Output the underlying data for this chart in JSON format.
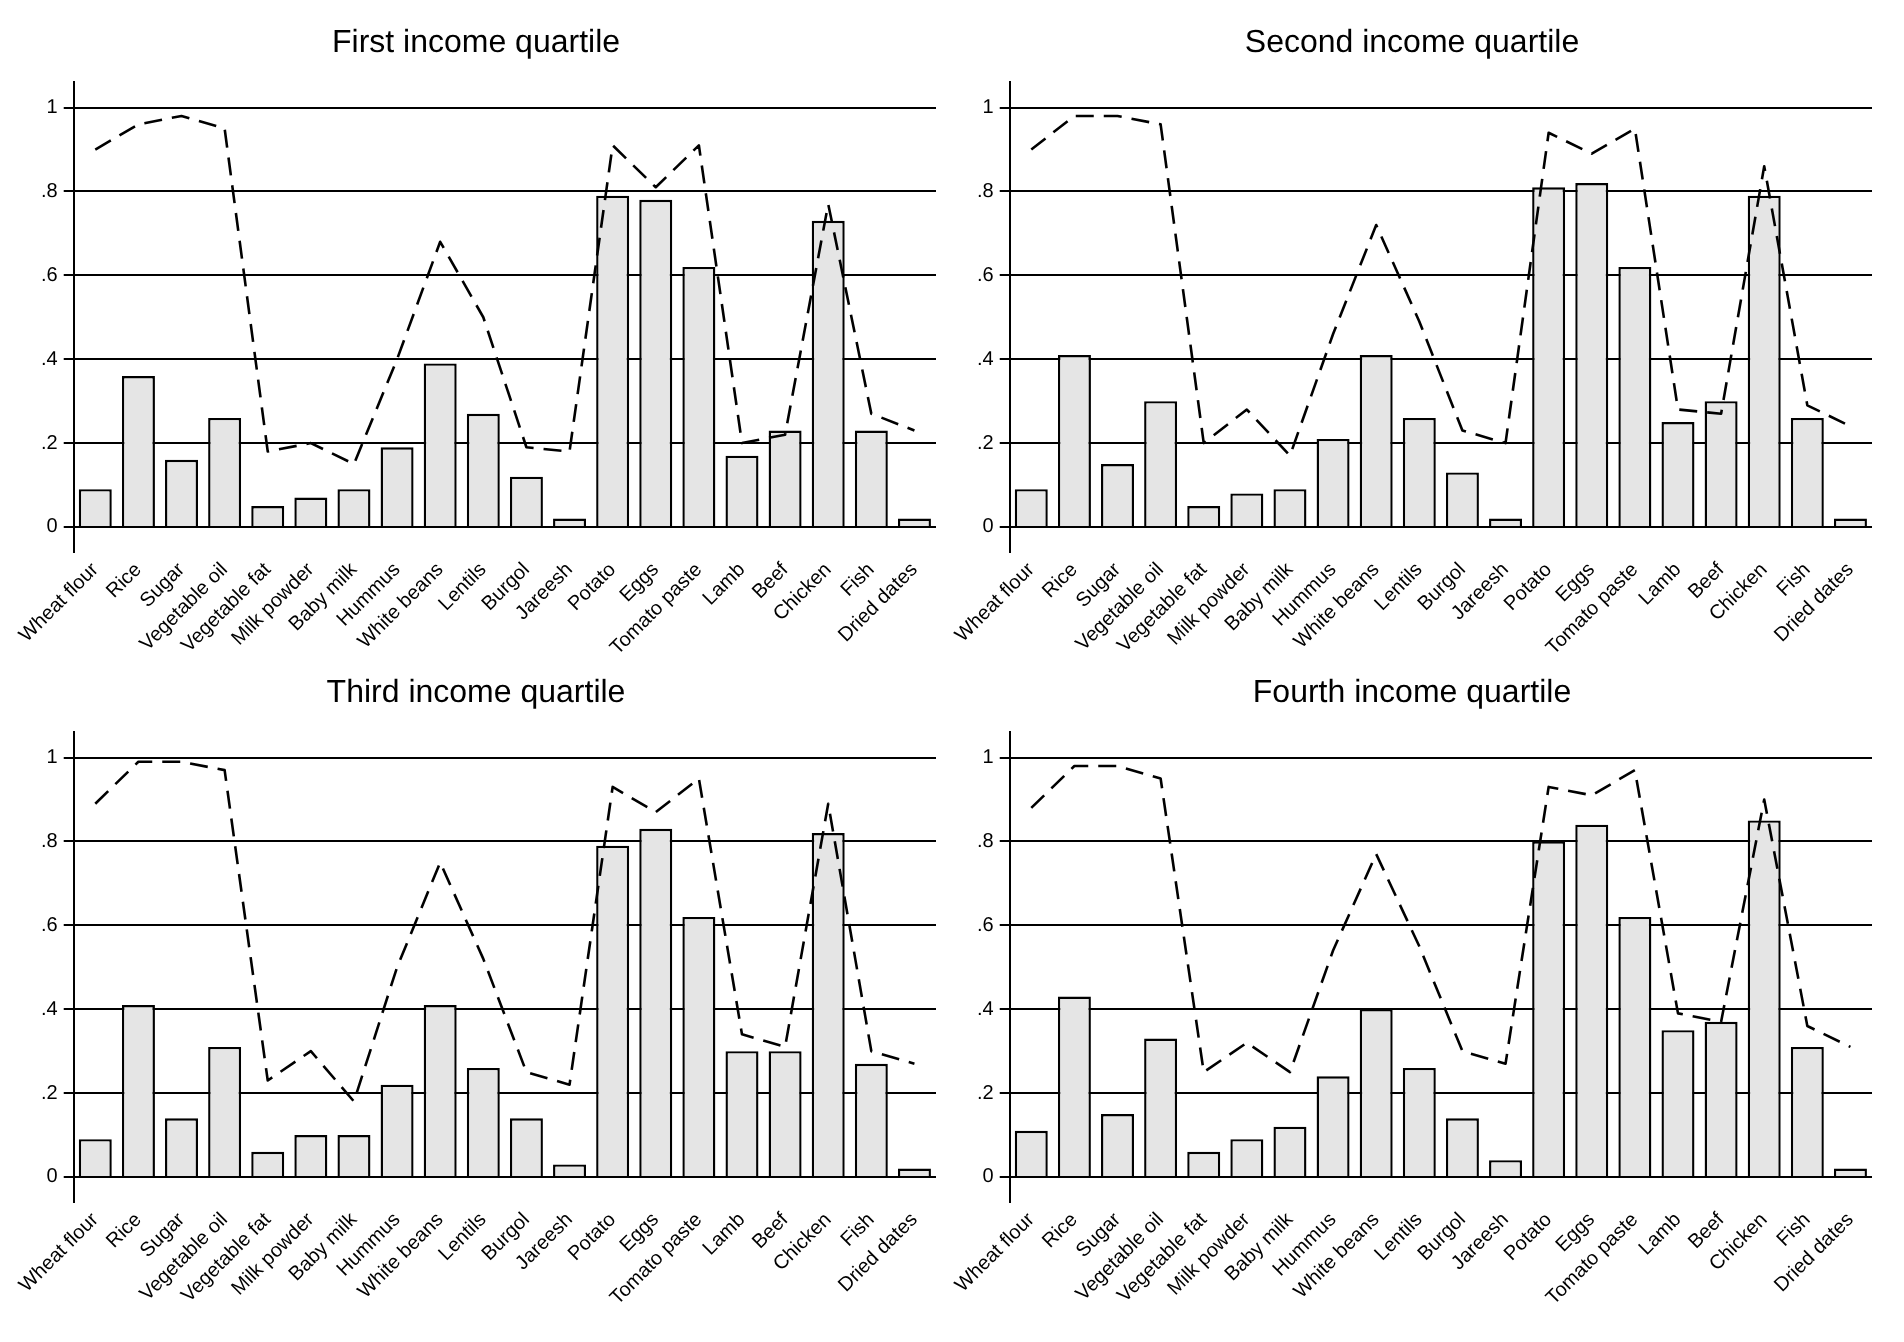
{
  "chart_data": [
    {
      "type": "bar",
      "title": "First income quartile",
      "categories": [
        "Wheat flour",
        "Rice",
        "Sugar",
        "Vegetable oil",
        "Vegetable fat",
        "Milk powder",
        "Baby milk",
        "Hummus",
        "White beans",
        "Lentils",
        "Burgol",
        "Jareesh",
        "Potato",
        "Eggs",
        "Tomato paste",
        "Lamb",
        "Beef",
        "Chicken",
        "Fish",
        "Dried dates"
      ],
      "ylim": [
        -0.06,
        1.06
      ],
      "yticks": [
        {
          "value": 0,
          "label": "0"
        },
        {
          "value": 0.2,
          "label": ".2"
        },
        {
          "value": 0.4,
          "label": ".4"
        },
        {
          "value": 0.6,
          "label": ".6"
        },
        {
          "value": 0.8,
          "label": ".8"
        },
        {
          "value": 1,
          "label": "1"
        }
      ],
      "grid": "y",
      "legend": false,
      "series": [
        {
          "color": "#e5e5e5",
          "values": [
            0.09,
            0.36,
            0.16,
            0.26,
            0.05,
            0.07,
            0.09,
            0.19,
            0.39,
            0.27,
            0.12,
            0.02,
            0.79,
            0.78,
            0.62,
            0.17,
            0.23,
            0.73,
            0.23,
            0.02
          ]
        },
        {
          "type": "line",
          "color": "#000000",
          "line_style": "dashed",
          "marker": "none",
          "values": [
            0.9,
            0.96,
            0.98,
            0.95,
            0.18,
            0.2,
            0.15,
            0.4,
            0.68,
            0.5,
            0.19,
            0.18,
            0.91,
            0.81,
            0.91,
            0.2,
            0.22,
            0.77,
            0.27,
            0.23
          ]
        }
      ]
    },
    {
      "type": "bar",
      "title": "Second income quartile",
      "categories": [
        "Wheat flour",
        "Rice",
        "Sugar",
        "Vegetable oil",
        "Vegetable fat",
        "Milk powder",
        "Baby milk",
        "Hummus",
        "White beans",
        "Lentils",
        "Burgol",
        "Jareesh",
        "Potato",
        "Eggs",
        "Tomato paste",
        "Lamb",
        "Beef",
        "Chicken",
        "Fish",
        "Dried dates"
      ],
      "ylim": [
        -0.06,
        1.06
      ],
      "yticks": [
        {
          "value": 0,
          "label": "0"
        },
        {
          "value": 0.2,
          "label": ".2"
        },
        {
          "value": 0.4,
          "label": ".4"
        },
        {
          "value": 0.6,
          "label": ".6"
        },
        {
          "value": 0.8,
          "label": ".8"
        },
        {
          "value": 1,
          "label": "1"
        }
      ],
      "grid": "y",
      "legend": false,
      "series": [
        {
          "color": "#e5e5e5",
          "values": [
            0.09,
            0.41,
            0.15,
            0.3,
            0.05,
            0.08,
            0.09,
            0.21,
            0.41,
            0.26,
            0.13,
            0.02,
            0.81,
            0.82,
            0.62,
            0.25,
            0.3,
            0.79,
            0.26,
            0.02
          ]
        },
        {
          "type": "line",
          "color": "#000000",
          "line_style": "dashed",
          "marker": "none",
          "values": [
            0.9,
            0.98,
            0.98,
            0.96,
            0.2,
            0.28,
            0.17,
            0.46,
            0.72,
            0.49,
            0.23,
            0.2,
            0.94,
            0.89,
            0.95,
            0.28,
            0.27,
            0.86,
            0.29,
            0.24
          ]
        }
      ]
    },
    {
      "type": "bar",
      "title": "Third income quartile",
      "categories": [
        "Wheat flour",
        "Rice",
        "Sugar",
        "Vegetable oil",
        "Vegetable fat",
        "Milk powder",
        "Baby milk",
        "Hummus",
        "White beans",
        "Lentils",
        "Burgol",
        "Jareesh",
        "Potato",
        "Eggs",
        "Tomato paste",
        "Lamb",
        "Beef",
        "Chicken",
        "Fish",
        "Dried dates"
      ],
      "ylim": [
        -0.06,
        1.06
      ],
      "yticks": [
        {
          "value": 0,
          "label": "0"
        },
        {
          "value": 0.2,
          "label": ".2"
        },
        {
          "value": 0.4,
          "label": ".4"
        },
        {
          "value": 0.6,
          "label": ".6"
        },
        {
          "value": 0.8,
          "label": ".8"
        },
        {
          "value": 1,
          "label": "1"
        }
      ],
      "grid": "y",
      "legend": false,
      "series": [
        {
          "color": "#e5e5e5",
          "values": [
            0.09,
            0.41,
            0.14,
            0.31,
            0.06,
            0.1,
            0.1,
            0.22,
            0.41,
            0.26,
            0.14,
            0.03,
            0.79,
            0.83,
            0.62,
            0.3,
            0.3,
            0.82,
            0.27,
            0.02
          ]
        },
        {
          "type": "line",
          "color": "#000000",
          "line_style": "dashed",
          "marker": "none",
          "values": [
            0.89,
            0.99,
            0.99,
            0.97,
            0.23,
            0.3,
            0.18,
            0.5,
            0.75,
            0.52,
            0.25,
            0.22,
            0.93,
            0.87,
            0.95,
            0.34,
            0.31,
            0.89,
            0.3,
            0.27
          ]
        }
      ]
    },
    {
      "type": "bar",
      "title": "Fourth income quartile",
      "categories": [
        "Wheat flour",
        "Rice",
        "Sugar",
        "Vegetable oil",
        "Vegetable fat",
        "Milk powder",
        "Baby milk",
        "Hummus",
        "White beans",
        "Lentils",
        "Burgol",
        "Jareesh",
        "Potato",
        "Eggs",
        "Tomato paste",
        "Lamb",
        "Beef",
        "Chicken",
        "Fish",
        "Dried dates"
      ],
      "ylim": [
        -0.06,
        1.06
      ],
      "yticks": [
        {
          "value": 0,
          "label": "0"
        },
        {
          "value": 0.2,
          "label": ".2"
        },
        {
          "value": 0.4,
          "label": ".4"
        },
        {
          "value": 0.6,
          "label": ".6"
        },
        {
          "value": 0.8,
          "label": ".8"
        },
        {
          "value": 1,
          "label": "1"
        }
      ],
      "grid": "y",
      "legend": false,
      "series": [
        {
          "color": "#e5e5e5",
          "values": [
            0.11,
            0.43,
            0.15,
            0.33,
            0.06,
            0.09,
            0.12,
            0.24,
            0.4,
            0.26,
            0.14,
            0.04,
            0.8,
            0.84,
            0.62,
            0.35,
            0.37,
            0.85,
            0.31,
            0.02
          ]
        },
        {
          "type": "line",
          "color": "#000000",
          "line_style": "dashed",
          "marker": "none",
          "values": [
            0.88,
            0.98,
            0.98,
            0.95,
            0.25,
            0.32,
            0.25,
            0.54,
            0.77,
            0.55,
            0.3,
            0.27,
            0.93,
            0.91,
            0.97,
            0.39,
            0.37,
            0.9,
            0.36,
            0.31
          ]
        }
      ]
    }
  ]
}
